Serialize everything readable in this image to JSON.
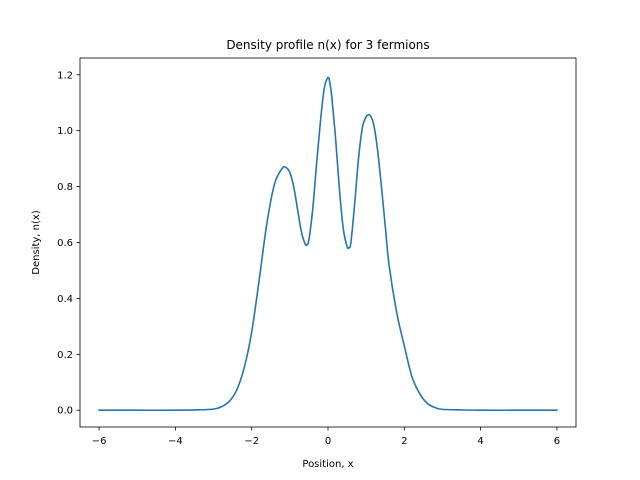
{
  "chart_data": {
    "type": "line",
    "title": "Density profile n(x) for 3 fermions",
    "xlabel": "Position, x",
    "ylabel": "Density, n(x)",
    "xlim": [
      -6.5,
      6.5
    ],
    "ylim": [
      -0.06,
      1.26
    ],
    "xticks": [
      -6,
      -4,
      -2,
      0,
      2,
      4,
      6
    ],
    "xtick_labels": [
      "−6",
      "−4",
      "−2",
      "0",
      "2",
      "4",
      "6"
    ],
    "yticks": [
      0.0,
      0.2,
      0.4,
      0.6,
      0.8,
      1.0,
      1.2
    ],
    "ytick_labels": [
      "0.0",
      "0.2",
      "0.4",
      "0.6",
      "0.8",
      "1.0",
      "1.2"
    ],
    "grid": false,
    "series": [
      {
        "color": "#1f77b4",
        "x": [
          -6.0,
          -5.0,
          -4.0,
          -3.5,
          -3.0,
          -2.8,
          -2.6,
          -2.4,
          -2.2,
          -2.0,
          -1.8,
          -1.6,
          -1.4,
          -1.2,
          -1.1,
          -1.0,
          -0.9,
          -0.8,
          -0.7,
          -0.6,
          -0.55,
          -0.5,
          -0.4,
          -0.3,
          -0.2,
          -0.1,
          0.0,
          0.05,
          0.1,
          0.2,
          0.3,
          0.4,
          0.5,
          0.55,
          0.6,
          0.7,
          0.8,
          0.9,
          1.0,
          1.1,
          1.2,
          1.3,
          1.4,
          1.5,
          1.6,
          1.8,
          2.0,
          2.2,
          2.4,
          2.6,
          2.8,
          3.0,
          3.5,
          4.0,
          5.0,
          6.0
        ],
        "y": [
          0.0,
          0.0,
          0.0,
          0.001,
          0.004,
          0.012,
          0.03,
          0.07,
          0.15,
          0.28,
          0.47,
          0.67,
          0.81,
          0.865,
          0.868,
          0.85,
          0.8,
          0.72,
          0.64,
          0.595,
          0.592,
          0.61,
          0.72,
          0.88,
          1.03,
          1.15,
          1.19,
          1.17,
          1.12,
          0.97,
          0.79,
          0.65,
          0.585,
          0.582,
          0.6,
          0.74,
          0.9,
          1.01,
          1.05,
          1.055,
          1.02,
          0.93,
          0.8,
          0.66,
          0.52,
          0.35,
          0.23,
          0.12,
          0.06,
          0.025,
          0.01,
          0.003,
          0.001,
          0.0,
          0.0,
          0.0
        ]
      }
    ]
  }
}
